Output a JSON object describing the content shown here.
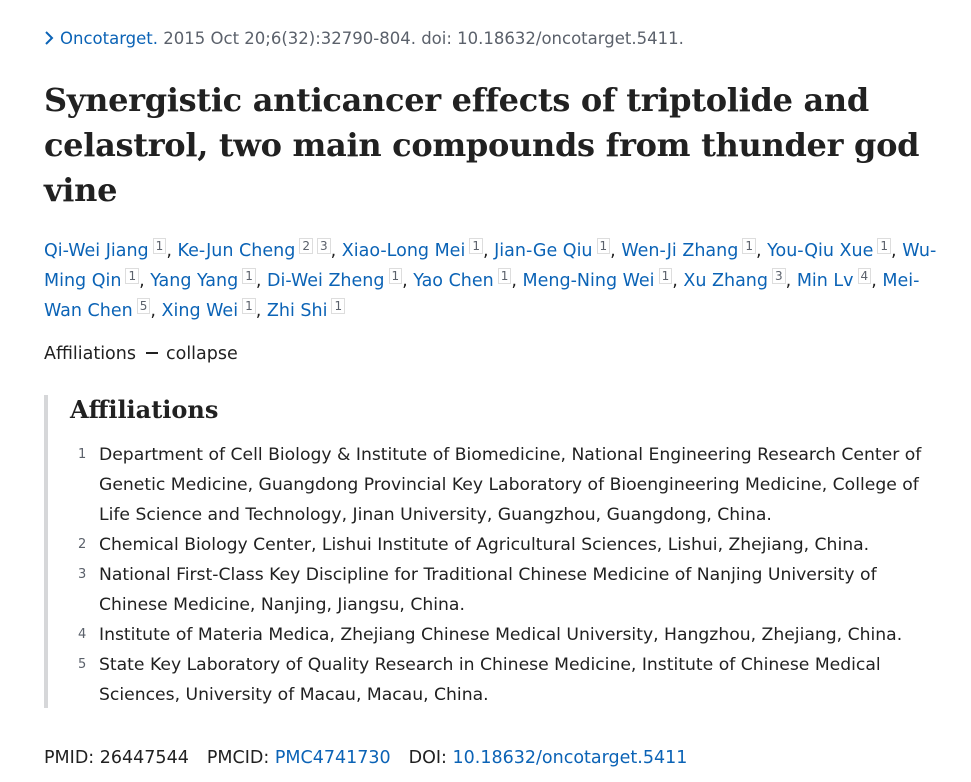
{
  "citation": {
    "journal": "Oncotarget.",
    "details": "2015 Oct 20;6(32):32790-804. doi: 10.18632/oncotarget.5411."
  },
  "title": "Synergistic anticancer effects of triptolide and celastrol, two main compounds from thunder god vine",
  "authors": {
    "separator": ",",
    "list": [
      {
        "name": "Qi-Wei Jiang",
        "sups": [
          "1"
        ]
      },
      {
        "name": "Ke-Jun Cheng",
        "sups": [
          "2",
          "3"
        ]
      },
      {
        "name": "Xiao-Long Mei",
        "sups": [
          "1"
        ]
      },
      {
        "name": "Jian-Ge Qiu",
        "sups": [
          "1"
        ]
      },
      {
        "name": "Wen-Ji Zhang",
        "sups": [
          "1"
        ]
      },
      {
        "name": "You-Qiu Xue",
        "sups": [
          "1"
        ]
      },
      {
        "name": "Wu-Ming Qin",
        "sups": [
          "1"
        ]
      },
      {
        "name": "Yang Yang",
        "sups": [
          "1"
        ]
      },
      {
        "name": "Di-Wei Zheng",
        "sups": [
          "1"
        ]
      },
      {
        "name": "Yao Chen",
        "sups": [
          "1"
        ]
      },
      {
        "name": "Meng-Ning Wei",
        "sups": [
          "1"
        ]
      },
      {
        "name": "Xu Zhang",
        "sups": [
          "3"
        ]
      },
      {
        "name": "Min Lv",
        "sups": [
          "4"
        ]
      },
      {
        "name": "Mei-Wan Chen",
        "sups": [
          "5"
        ]
      },
      {
        "name": "Xing Wei",
        "sups": [
          "1"
        ]
      },
      {
        "name": "Zhi Shi",
        "sups": [
          "1"
        ]
      }
    ]
  },
  "affiliations_toggle": {
    "label": "Affiliations",
    "action": "collapse"
  },
  "affiliations": {
    "heading": "Affiliations",
    "items": [
      {
        "number": "1",
        "text": "Department of Cell Biology & Institute of Biomedicine, National Engineering Research Center of Genetic Medicine, Guangdong Provincial Key Laboratory of Bioengineering Medicine, College of Life Science and Technology, Jinan University, Guangzhou, Guangdong, China."
      },
      {
        "number": "2",
        "text": "Chemical Biology Center, Lishui Institute of Agricultural Sciences, Lishui, Zhejiang, China."
      },
      {
        "number": "3",
        "text": "National First-Class Key Discipline for Traditional Chinese Medicine of Nanjing University of Chinese Medicine, Nanjing, Jiangsu, China."
      },
      {
        "number": "4",
        "text": "Institute of Materia Medica, Zhejiang Chinese Medical University, Hangzhou, Zhejiang, China."
      },
      {
        "number": "5",
        "text": "State Key Laboratory of Quality Research in Chinese Medicine, Institute of Chinese Medical Sciences, University of Macau, Macau, China."
      }
    ]
  },
  "identifiers": {
    "pmid_label": "PMID:",
    "pmid": "26447544",
    "pmcid_label": "PMCID:",
    "pmcid": "PMC4741730",
    "doi_label": "DOI:",
    "doi": "10.18632/oncotarget.5411"
  }
}
